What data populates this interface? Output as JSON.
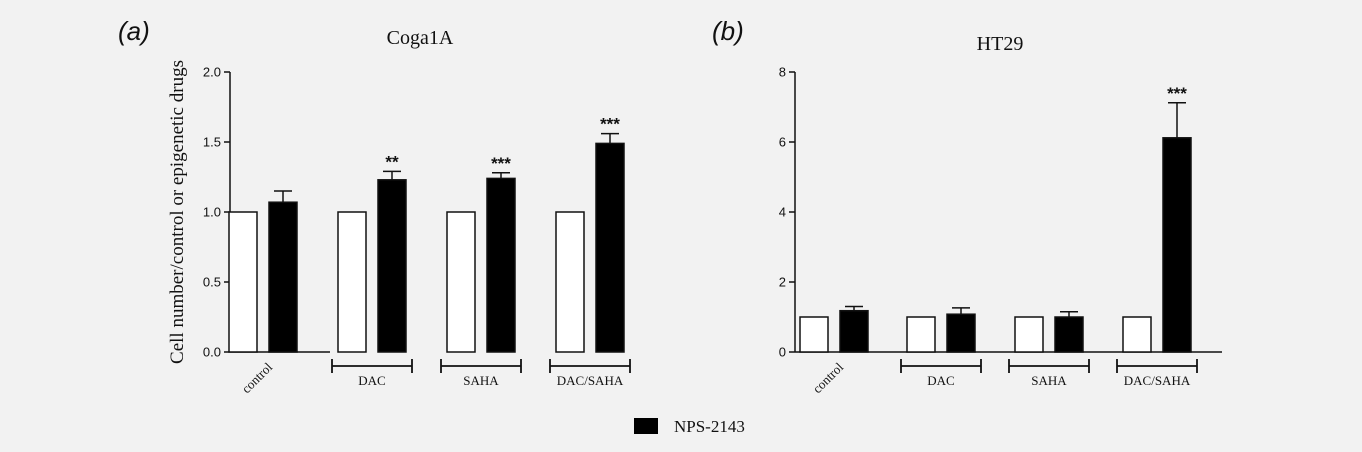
{
  "legend": {
    "label": "NPS-2143",
    "color": "#000000"
  },
  "colors": {
    "control_fill": "#ffffff",
    "treated_fill": "#000000",
    "axis": "#111111",
    "background": "#f2f2f2"
  },
  "chart_data": [
    {
      "type": "bar",
      "panel_label": "(a)",
      "title": "Coga1A",
      "ylabel": "Cell number/control or epigenetic drugs",
      "xlabel": "",
      "ylim": [
        0,
        2.0
      ],
      "yticks": [
        "0.0",
        "0.5",
        "1.0",
        "1.5",
        "2.0"
      ],
      "ytick_values": [
        0,
        0.5,
        1.0,
        1.5,
        2.0
      ],
      "categories": [
        "control",
        "DAC",
        "SAHA",
        "DAC/SAHA"
      ],
      "series": [
        {
          "key": "untreated",
          "values": [
            1.0,
            1.0,
            1.0,
            1.0
          ],
          "errors": [
            0,
            0,
            0,
            0
          ]
        },
        {
          "name": "NPS-2143",
          "values": [
            1.07,
            1.23,
            1.24,
            1.49
          ],
          "errors": [
            0.08,
            0.06,
            0.04,
            0.07
          ]
        }
      ],
      "annotations": [
        "",
        "**",
        "***",
        "***"
      ]
    },
    {
      "type": "bar",
      "panel_label": "(b)",
      "title": "HT29",
      "ylabel": "",
      "xlabel": "",
      "ylim": [
        0,
        8
      ],
      "yticks": [
        "0",
        "2",
        "4",
        "6",
        "8"
      ],
      "ytick_values": [
        0,
        2,
        4,
        6,
        8
      ],
      "categories": [
        "control",
        "DAC",
        "SAHA",
        "DAC/SAHA"
      ],
      "series": [
        {
          "key": "untreated",
          "values": [
            1.0,
            1.0,
            1.0,
            1.0
          ],
          "errors": [
            0,
            0,
            0,
            0
          ]
        },
        {
          "name": "NPS-2143",
          "values": [
            1.18,
            1.08,
            1.0,
            6.12
          ],
          "errors": [
            0.12,
            0.18,
            0.15,
            1.0
          ]
        }
      ],
      "annotations": [
        "",
        "",
        "",
        "***"
      ]
    }
  ]
}
